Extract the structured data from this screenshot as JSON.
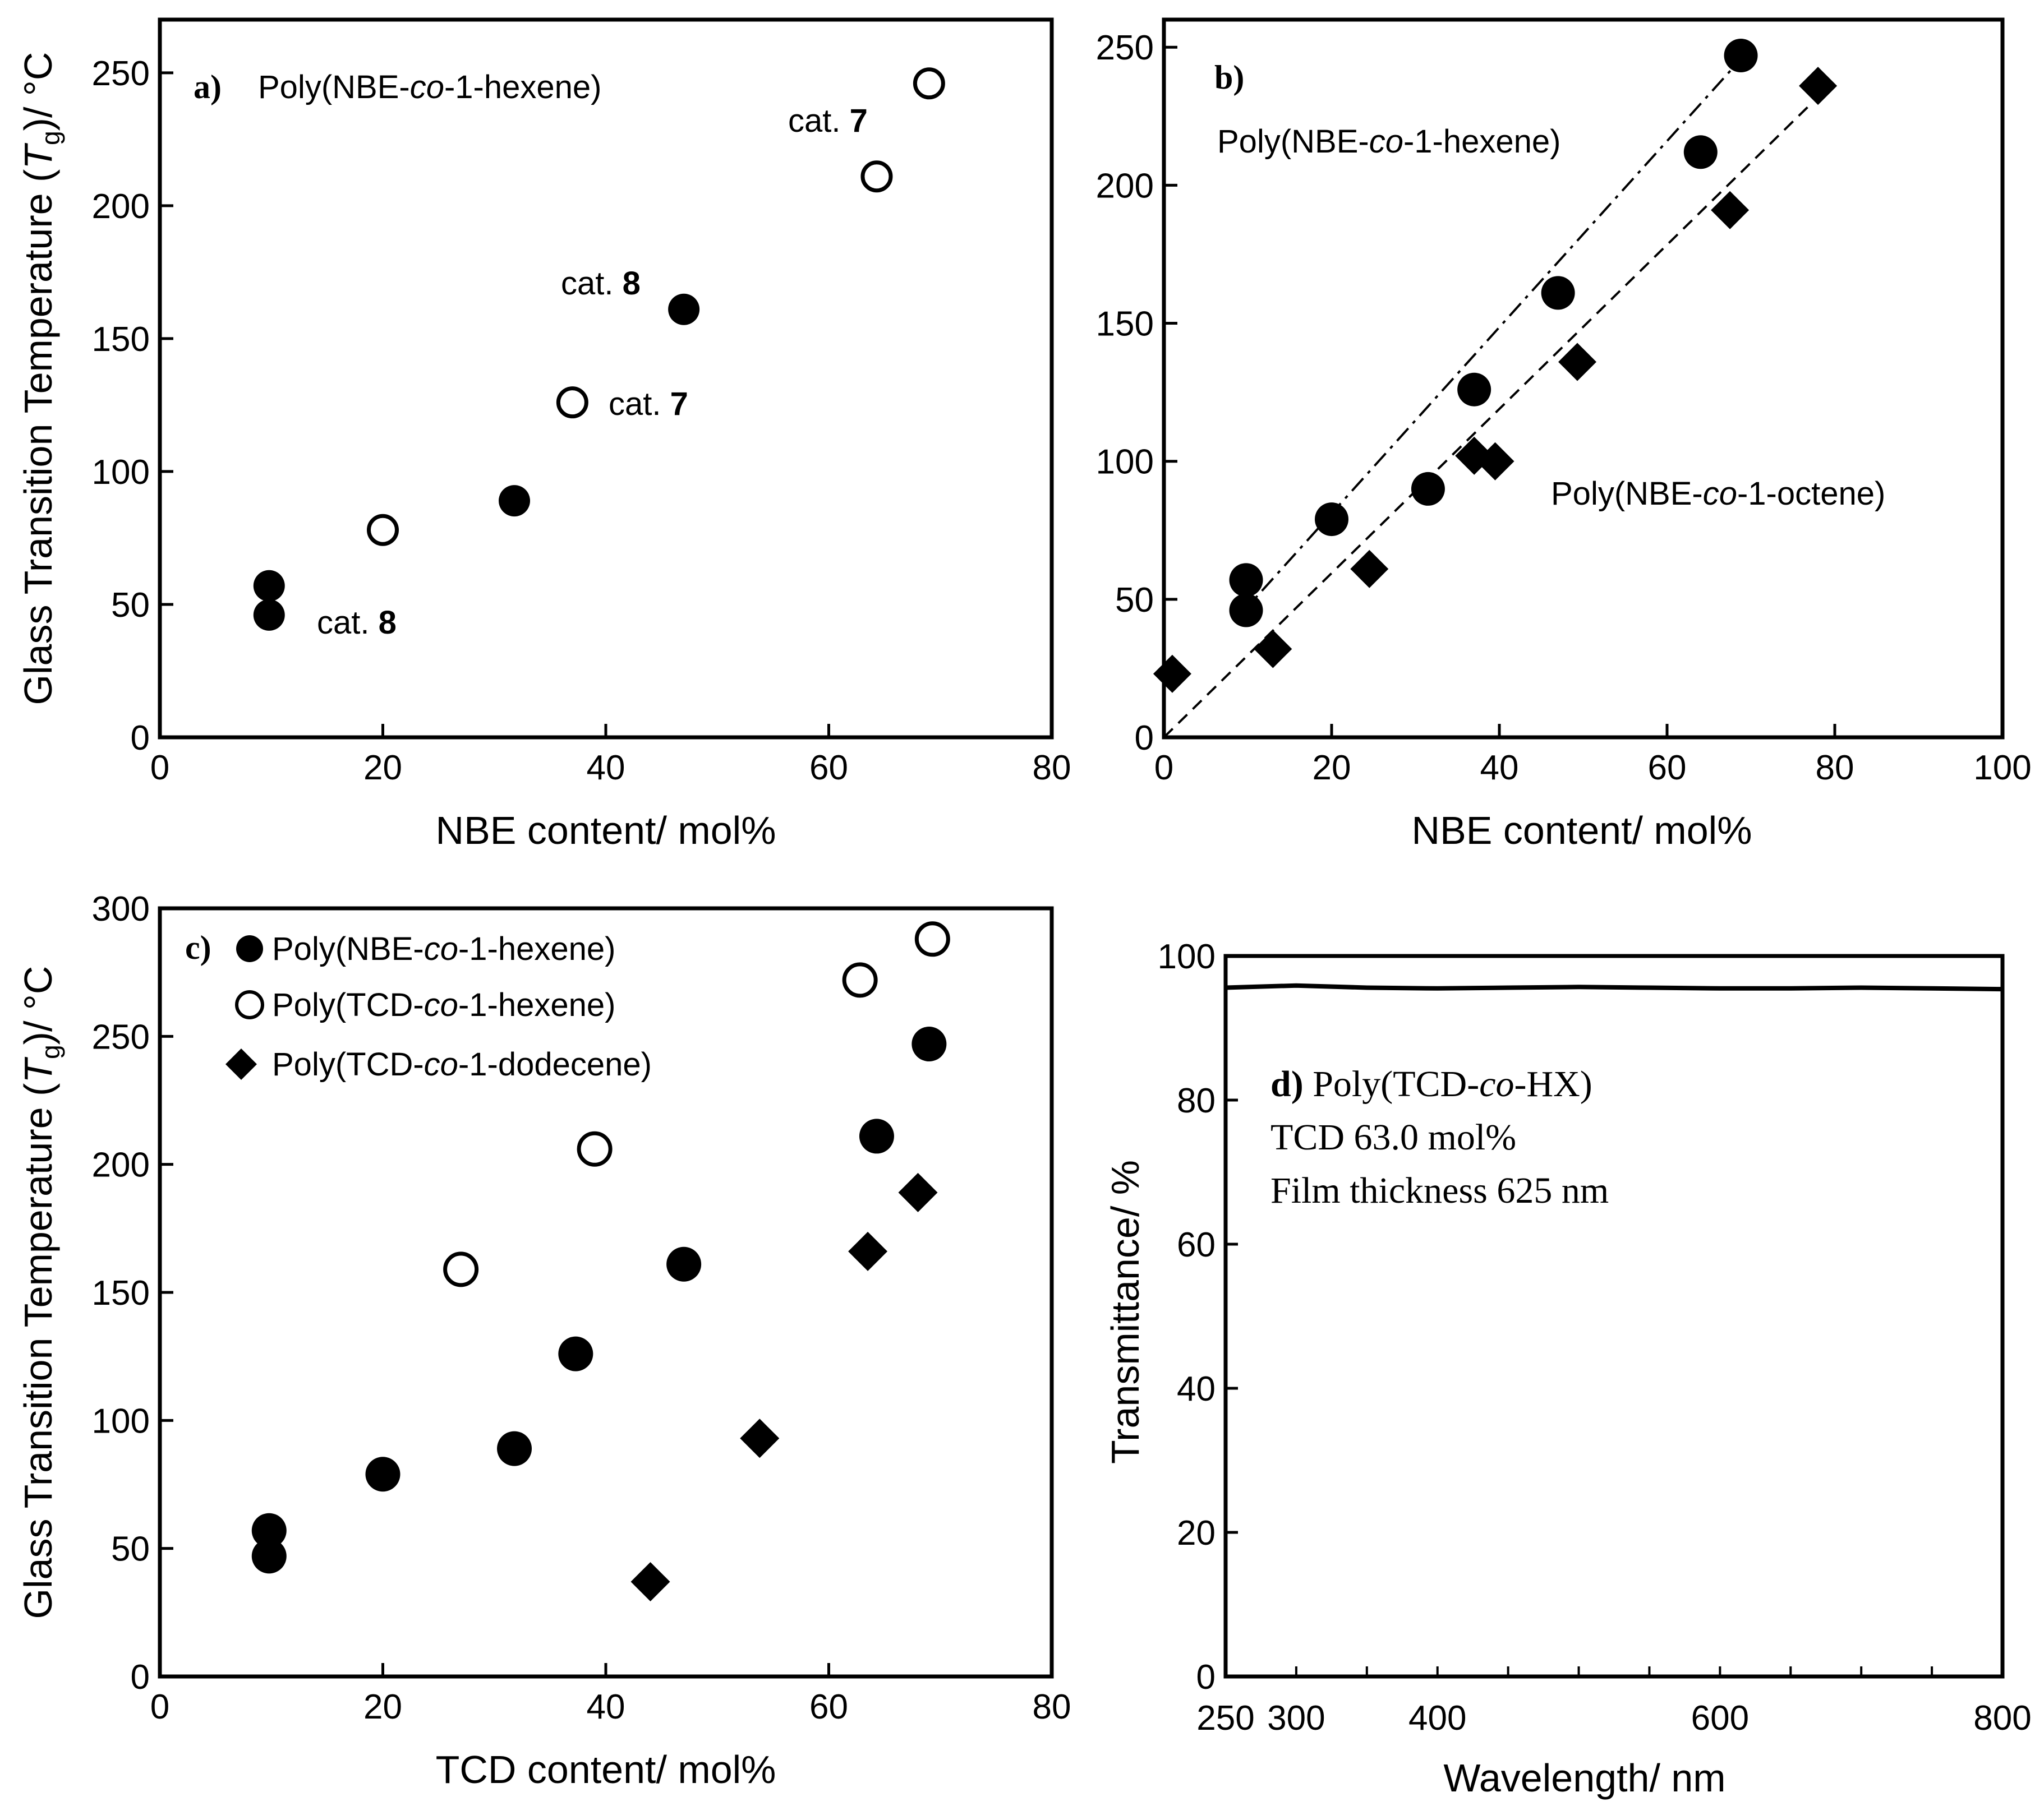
{
  "chart_data": [
    {
      "id": "a",
      "type": "scatter",
      "panel_label": "a)",
      "title": "Poly(NBE-co-1-hexene)",
      "xlabel": "NBE content/ mol%",
      "ylabel": "Glass Transition Temperature (Tg)/ °C",
      "xlim": [
        0,
        80
      ],
      "ylim": [
        0,
        270
      ],
      "xticks": [
        0,
        20,
        40,
        60,
        80
      ],
      "yticks": [
        0,
        50,
        100,
        150,
        200,
        250
      ],
      "series": [
        {
          "name": "cat. 8",
          "marker": "filled-circle",
          "x": [
            9.8,
            9.8,
            31.8,
            47.0
          ],
          "y": [
            57,
            46,
            89,
            161
          ]
        },
        {
          "name": "cat. 7",
          "marker": "open-circle",
          "x": [
            20.0,
            37.0,
            64.3,
            69.0
          ],
          "y": [
            78,
            126,
            211,
            246
          ]
        }
      ],
      "annotations": [
        "cat. 7",
        "cat. 8",
        "cat. 7",
        "cat. 8"
      ]
    },
    {
      "id": "b",
      "type": "scatter",
      "panel_label": "b)",
      "xlabel": "NBE content/ mol%",
      "ylabel": "",
      "xlim": [
        0,
        100
      ],
      "ylim": [
        0,
        260
      ],
      "xticks": [
        0,
        20,
        40,
        60,
        80,
        100
      ],
      "yticks": [
        0,
        50,
        100,
        150,
        200,
        250
      ],
      "series": [
        {
          "name": "Poly(NBE-co-1-hexene)",
          "marker": "filled-circle",
          "fit": "dash-dot",
          "fit_line": {
            "x": [
              9,
              68
            ],
            "y": [
              44,
              243
            ]
          },
          "x": [
            9.8,
            9.8,
            20.0,
            31.5,
            37.0,
            47.0,
            64.0,
            68.8
          ],
          "y": [
            57,
            46,
            79,
            90,
            126,
            161,
            212,
            247
          ]
        },
        {
          "name": "Poly(NBE-co-1-octene)",
          "marker": "filled-diamond",
          "fit": "dashed",
          "fit_line": {
            "x": [
              0,
              77
            ],
            "y": [
              0,
              229
            ]
          },
          "x": [
            1.0,
            13.0,
            24.5,
            37.0,
            39.5,
            49.3,
            67.5,
            78.0
          ],
          "y": [
            23,
            32,
            61,
            102,
            100,
            136,
            191,
            236
          ]
        }
      ]
    },
    {
      "id": "c",
      "type": "scatter",
      "panel_label": "c)",
      "xlabel": "TCD content/ mol%",
      "ylabel": "Glass Transition Temperature (Tg)/ °C",
      "xlim": [
        0,
        80
      ],
      "ylim": [
        0,
        300
      ],
      "xticks": [
        0,
        20,
        40,
        60,
        80
      ],
      "yticks": [
        0,
        50,
        100,
        150,
        200,
        250,
        300
      ],
      "series": [
        {
          "name": "Poly(NBE-co-1-hexene)",
          "marker": "filled-circle",
          "x": [
            9.8,
            9.8,
            20.0,
            31.8,
            37.3,
            47.0,
            64.3,
            69.0
          ],
          "y": [
            57,
            47,
            79,
            89,
            126,
            161,
            211,
            247
          ]
        },
        {
          "name": "Poly(TCD-co-1-hexene)",
          "marker": "open-circle",
          "x": [
            27.0,
            39.0,
            62.8,
            69.3
          ],
          "y": [
            159,
            206,
            272,
            288
          ]
        },
        {
          "name": "Poly(TCD-co-1-dodecene)",
          "marker": "filled-diamond",
          "x": [
            44.0,
            53.8,
            63.5,
            68.0
          ],
          "y": [
            37,
            93,
            166,
            189
          ]
        }
      ]
    },
    {
      "id": "d",
      "type": "line",
      "panel_label": "d)",
      "xlabel": "Wavelength/ nm",
      "ylabel": "Transmittance/ %",
      "xlim": [
        250,
        800
      ],
      "ylim": [
        0,
        100
      ],
      "xticks": [
        250,
        300,
        400,
        600,
        800
      ],
      "yticks": [
        0,
        20,
        40,
        60,
        80,
        100
      ],
      "series": [
        {
          "name": "Transmittance",
          "x": [
            250,
            300,
            350,
            400,
            450,
            500,
            550,
            600,
            650,
            700,
            750,
            800
          ],
          "y": [
            95.6,
            95.9,
            95.6,
            95.5,
            95.6,
            95.7,
            95.6,
            95.5,
            95.5,
            95.6,
            95.5,
            95.4
          ]
        }
      ],
      "info_lines": [
        "Poly(TCD-co-HX)",
        "TCD 63.0 mol%",
        "Film thickness 625 nm"
      ]
    }
  ],
  "labels": {
    "a_title_pre": "Poly(NBE-",
    "co": "co",
    "a_title_post": "-1-hexene)",
    "cat": "cat.",
    "num7": "7",
    "num8": "8",
    "ylabel_pre": "Glass Transition Temperature (",
    "T": "T",
    "g": "g",
    "ylabel_post": ")/ °C",
    "b_hex_pre": "Poly(NBE-",
    "b_hex_post": "-1-hexene)",
    "b_oct_pre": "Poly(NBE-",
    "b_oct_post": "-1-octene)",
    "c_leg1_pre": "Poly(NBE-",
    "c_leg1_post": "-1-hexene)",
    "c_leg2_pre": "Poly(TCD-",
    "c_leg2_post": "-1-hexene)",
    "c_leg3_pre": "Poly(TCD-",
    "c_leg3_post": "-1-dodecene)",
    "d_info1_pre": "Poly(TCD-",
    "d_info1_post": "-HX)",
    "d_info2": "TCD 63.0 mol%",
    "d_info3": "Film thickness 625 nm"
  }
}
